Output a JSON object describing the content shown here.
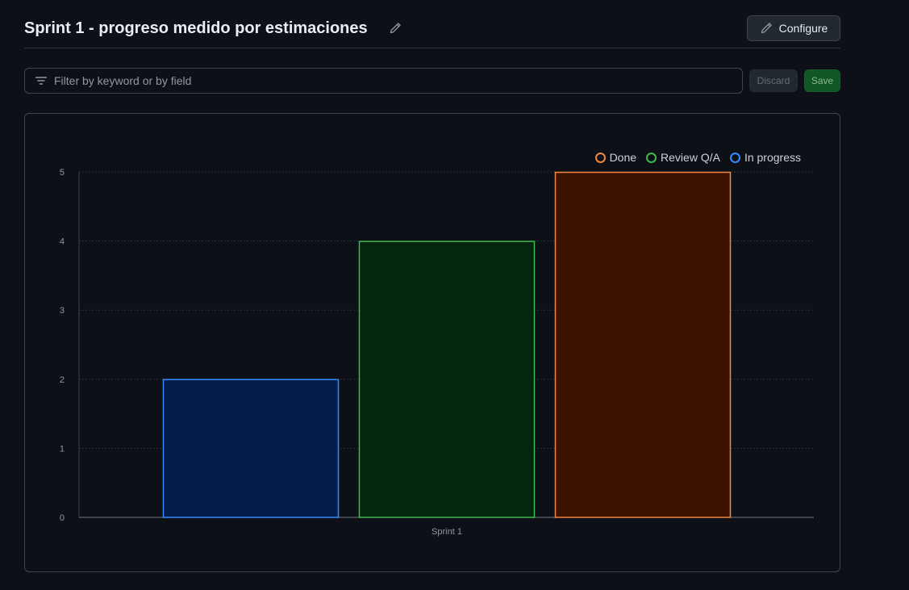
{
  "header": {
    "title": "Sprint 1 - progreso medido por estimaciones",
    "configure_label": "Configure"
  },
  "filter": {
    "placeholder": "Filter by keyword or by field",
    "value": ""
  },
  "actions": {
    "discard_label": "Discard",
    "save_label": "Save"
  },
  "colors": {
    "background": "#0d1117",
    "done": "#f0883e",
    "review": "#3fb950",
    "in_progress": "#388bfd"
  },
  "chart_data": {
    "type": "bar",
    "categories": [
      "Sprint 1"
    ],
    "series": [
      {
        "name": "In progress",
        "values": [
          2
        ],
        "color": "#388bfd",
        "fill": "#051d4d"
      },
      {
        "name": "Review Q/A",
        "values": [
          4
        ],
        "color": "#3fb950",
        "fill": "#04260f"
      },
      {
        "name": "Done",
        "values": [
          5
        ],
        "color": "#f0883e",
        "fill": "#3d1300"
      }
    ],
    "legend_order": [
      "Done",
      "Review Q/A",
      "In progress"
    ],
    "legend_position": "top-right",
    "title": "",
    "xlabel": "",
    "ylabel": "",
    "ylim": [
      0,
      5
    ],
    "yticks": [
      0,
      1,
      2,
      3,
      4,
      5
    ],
    "grid": true
  }
}
